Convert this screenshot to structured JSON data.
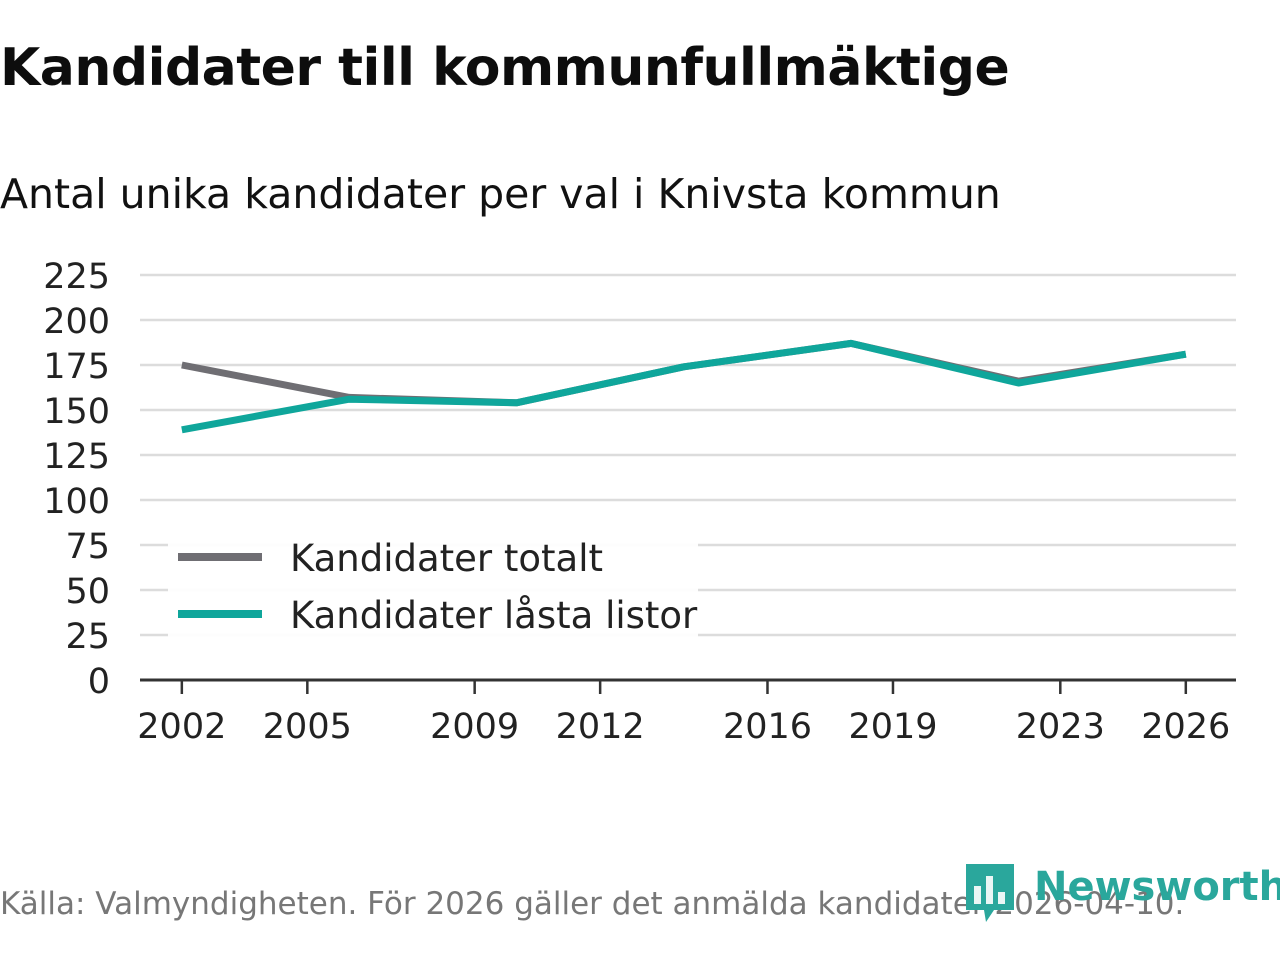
{
  "title": "Kandidater till kommunfullmäktige",
  "subtitle": "Antal unika kandidater per val i Knivsta kommun",
  "source": "Källa: Valmyndigheten. För 2026 gäller det anmälda kandidater 2026-04-10.",
  "brand": {
    "name": "Newsworthy",
    "logo_icon": "bar-chart-flag-icon",
    "color": "#2aa79c"
  },
  "chart_data": {
    "type": "line",
    "title": "Kandidater till kommunfullmäktige",
    "subtitle": "Antal unika kandidater per val i Knivsta kommun",
    "xlabel": "",
    "ylabel": "",
    "x": [
      2002,
      2006,
      2010,
      2014,
      2018,
      2022,
      2026
    ],
    "x_tick_labels": [
      "2002",
      "2005",
      "2009",
      "2012",
      "2016",
      "2019",
      "2023",
      "2026"
    ],
    "x_tick_values": [
      2002,
      2005,
      2009,
      2012,
      2016,
      2019,
      2023,
      2026
    ],
    "xlim": [
      2001,
      2027.2
    ],
    "y_tick_labels": [
      "0",
      "25",
      "50",
      "75",
      "100",
      "125",
      "150",
      "175",
      "200",
      "225"
    ],
    "ylim": [
      0,
      225
    ],
    "grid": true,
    "legend": "bottom-left",
    "series": [
      {
        "name": "Kandidater totalt",
        "color": "#6f6e73",
        "values": [
          175,
          157,
          154,
          174,
          187,
          166,
          181
        ]
      },
      {
        "name": "Kandidater låsta listor",
        "color": "#0fa69b",
        "values": [
          139,
          156,
          154,
          174,
          187,
          165,
          181
        ]
      }
    ]
  }
}
